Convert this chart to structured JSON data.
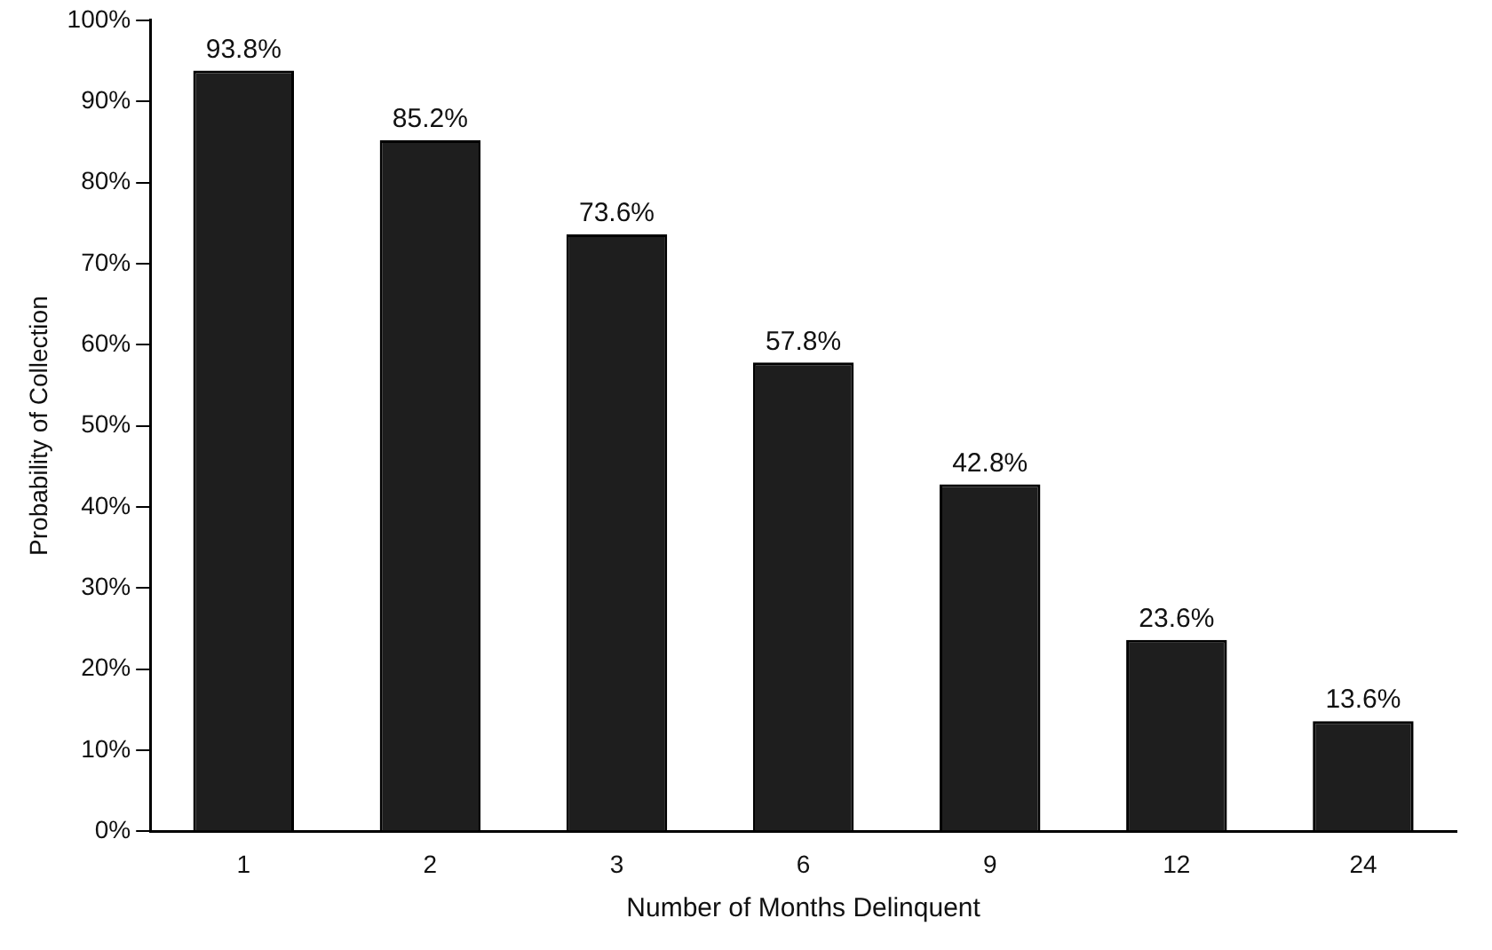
{
  "chart_data": {
    "type": "bar",
    "xlabel": "Number of Months Delinquent",
    "ylabel": "Probability of Collection",
    "categories": [
      "1",
      "2",
      "3",
      "6",
      "9",
      "12",
      "24"
    ],
    "values": [
      93.8,
      85.2,
      73.6,
      57.8,
      42.8,
      23.6,
      13.6
    ],
    "value_labels": [
      "93.8%",
      "85.2%",
      "73.6%",
      "57.8%",
      "42.8%",
      "23.6%",
      "13.6%"
    ],
    "color": "#1e1e1e",
    "ylim": [
      0,
      100
    ],
    "yticks": [
      {
        "value": 0,
        "label": "0%"
      },
      {
        "value": 10,
        "label": "10%"
      },
      {
        "value": 20,
        "label": "20%"
      },
      {
        "value": 30,
        "label": "30%"
      },
      {
        "value": 40,
        "label": "40%"
      },
      {
        "value": 50,
        "label": "50%"
      },
      {
        "value": 60,
        "label": "60%"
      },
      {
        "value": 70,
        "label": "70%"
      },
      {
        "value": 80,
        "label": "80%"
      },
      {
        "value": 90,
        "label": "90%"
      },
      {
        "value": 100,
        "label": "100%"
      }
    ],
    "grid": false,
    "legend": false
  }
}
